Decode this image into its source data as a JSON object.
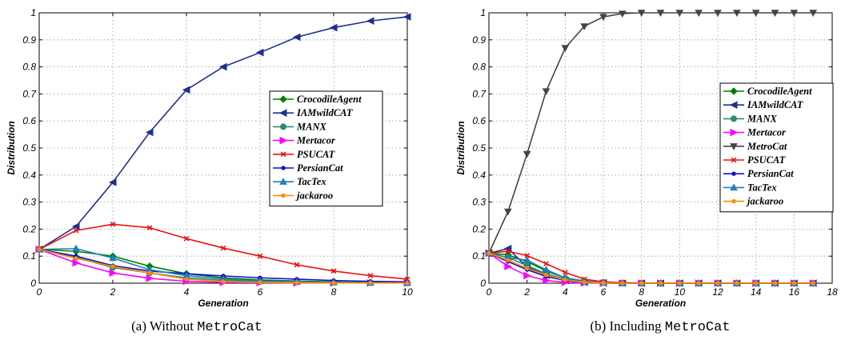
{
  "chart_data": [
    {
      "type": "line",
      "caption_prefix": "(a)  Without ",
      "caption_code": "MetroCat",
      "xlabel": "Generation",
      "ylabel": "Distribution",
      "xlim": [
        0,
        10
      ],
      "ylim": [
        0,
        1
      ],
      "xticks": [
        0,
        2,
        4,
        6,
        8,
        10
      ],
      "yticks": [
        0,
        0.1,
        0.2,
        0.3,
        0.4,
        0.5,
        0.6,
        0.7,
        0.8,
        0.9,
        1
      ],
      "ytick_labels": [
        "0",
        "0.1",
        "0.2",
        "0.3",
        "0.4",
        "0.5",
        "0.6",
        "0.7",
        "0.8",
        "0.9",
        "1"
      ],
      "grid": true,
      "legend_position": "right",
      "x": [
        0,
        1,
        2,
        3,
        4,
        5,
        6,
        7,
        8,
        9,
        10
      ],
      "series": [
        {
          "name": "CrocodileAgent",
          "color": "#007f00",
          "marker": "diamond",
          "values": [
            0.125,
            0.118,
            0.1,
            0.063,
            0.035,
            0.02,
            0.012,
            0.008,
            0.005,
            0.003,
            0.002
          ]
        },
        {
          "name": "IAMwildCAT",
          "color": "#1f2f8f",
          "marker": "triangle-left",
          "values": [
            0.125,
            0.21,
            0.373,
            0.558,
            0.715,
            0.8,
            0.853,
            0.91,
            0.945,
            0.97,
            0.985
          ]
        },
        {
          "name": "MANX",
          "color": "#2e8b6a",
          "marker": "circle",
          "values": [
            0.125,
            0.095,
            0.058,
            0.038,
            0.02,
            0.01,
            0.006,
            0.004,
            0.003,
            0.002,
            0.001
          ]
        },
        {
          "name": "Mertacor",
          "color": "#ff00ff",
          "marker": "triangle-right",
          "values": [
            0.125,
            0.075,
            0.038,
            0.018,
            0.007,
            0.003,
            0.002,
            0.001,
            0.001,
            0.001,
            0.001
          ]
        },
        {
          "name": "PSUCAT",
          "color": "#ee1111",
          "marker": "x",
          "values": [
            0.125,
            0.195,
            0.218,
            0.205,
            0.165,
            0.13,
            0.1,
            0.068,
            0.045,
            0.028,
            0.015
          ]
        },
        {
          "name": "PersianCat",
          "color": "#1111cc",
          "marker": "dot",
          "values": [
            0.125,
            0.1,
            0.065,
            0.045,
            0.035,
            0.027,
            0.02,
            0.015,
            0.01,
            0.007,
            0.005
          ]
        },
        {
          "name": "TacTex",
          "color": "#1f7fbf",
          "marker": "triangle-up",
          "values": [
            0.125,
            0.128,
            0.093,
            0.05,
            0.028,
            0.015,
            0.008,
            0.005,
            0.003,
            0.002,
            0.001
          ]
        },
        {
          "name": "jackaroo",
          "color": "#ff8c00",
          "marker": "dot",
          "values": [
            0.125,
            0.092,
            0.062,
            0.038,
            0.015,
            0.006,
            0.003,
            0.002,
            0.001,
            0.001,
            0.001
          ]
        }
      ]
    },
    {
      "type": "line",
      "caption_prefix": "(b)  Including ",
      "caption_code": "MetroCat",
      "xlabel": "Generation",
      "ylabel": "Distribution",
      "xlim": [
        0,
        18
      ],
      "ylim": [
        0,
        1
      ],
      "xticks": [
        0,
        2,
        4,
        6,
        8,
        10,
        12,
        14,
        16,
        18
      ],
      "yticks": [
        0,
        0.1,
        0.2,
        0.3,
        0.4,
        0.5,
        0.6,
        0.7,
        0.8,
        0.9,
        1
      ],
      "ytick_labels": [
        "0",
        "0.1",
        "0.2",
        "0.3",
        "0.4",
        "0.5",
        "0.6",
        "0.7",
        "0.8",
        "0.9",
        "1"
      ],
      "grid": true,
      "legend_position": "right",
      "x": [
        0,
        1,
        2,
        3,
        4,
        5,
        6,
        7,
        8,
        9,
        10,
        11,
        12,
        13,
        14,
        15,
        16,
        17
      ],
      "series": [
        {
          "name": "CrocodileAgent",
          "color": "#007f00",
          "marker": "diamond",
          "values": [
            0.111,
            0.105,
            0.08,
            0.045,
            0.02,
            0.008,
            0.003,
            0.001,
            0,
            0,
            0,
            0,
            0,
            0,
            0,
            0,
            0,
            0
          ]
        },
        {
          "name": "IAMwildCAT",
          "color": "#1f2f8f",
          "marker": "triangle-left",
          "values": [
            0.111,
            0.128,
            0.06,
            0.03,
            0.01,
            0.003,
            0.001,
            0,
            0,
            0,
            0,
            0,
            0,
            0,
            0,
            0,
            0,
            0
          ]
        },
        {
          "name": "MANX",
          "color": "#2e8b6a",
          "marker": "circle",
          "values": [
            0.111,
            0.095,
            0.065,
            0.035,
            0.015,
            0.005,
            0.002,
            0,
            0,
            0,
            0,
            0,
            0,
            0,
            0,
            0,
            0,
            0
          ]
        },
        {
          "name": "Mertacor",
          "color": "#ff00ff",
          "marker": "triangle-right",
          "values": [
            0.111,
            0.062,
            0.028,
            0.01,
            0.003,
            0.001,
            0,
            0,
            0,
            0,
            0,
            0,
            0,
            0,
            0,
            0,
            0,
            0
          ]
        },
        {
          "name": "MetroCat",
          "color": "#444444",
          "marker": "triangle-down",
          "values": [
            0.111,
            0.265,
            0.478,
            0.71,
            0.87,
            0.95,
            0.985,
            0.997,
            1,
            1,
            1,
            1,
            1,
            1,
            1,
            1,
            1,
            1
          ]
        },
        {
          "name": "PSUCAT",
          "color": "#ee1111",
          "marker": "x",
          "values": [
            0.111,
            0.118,
            0.102,
            0.072,
            0.04,
            0.015,
            0.005,
            0.002,
            0.001,
            0,
            0,
            0,
            0,
            0,
            0,
            0,
            0,
            0
          ]
        },
        {
          "name": "PersianCat",
          "color": "#1111cc",
          "marker": "dot",
          "values": [
            0.111,
            0.08,
            0.05,
            0.025,
            0.01,
            0.004,
            0.001,
            0,
            0,
            0,
            0,
            0,
            0,
            0,
            0,
            0,
            0,
            0
          ]
        },
        {
          "name": "TacTex",
          "color": "#1f7fbf",
          "marker": "triangle-up",
          "values": [
            0.111,
            0.095,
            0.085,
            0.05,
            0.02,
            0.006,
            0.002,
            0,
            0,
            0,
            0,
            0,
            0,
            0,
            0,
            0,
            0,
            0
          ]
        },
        {
          "name": "jackaroo",
          "color": "#ff8c00",
          "marker": "dot",
          "values": [
            0.111,
            0.085,
            0.055,
            0.03,
            0.012,
            0.004,
            0.001,
            0,
            0,
            0,
            0,
            0,
            0,
            0,
            0,
            0,
            0,
            0
          ]
        }
      ]
    }
  ]
}
